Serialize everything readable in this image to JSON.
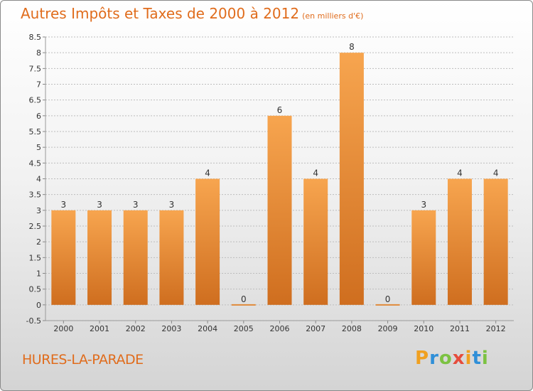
{
  "title": "Autres Impôts et Taxes de 2000 à 2012",
  "subtitle": "(en milliers d'€)",
  "place": "HURES-LA-PARADE",
  "logo": {
    "letters": [
      "P",
      "r",
      "o",
      "x",
      "i",
      "t",
      "i"
    ],
    "colors": [
      "#f0a020",
      "#2f8fd8",
      "#7cc242",
      "#e64c3c",
      "#f0a020",
      "#2f8fd8",
      "#7cc242"
    ]
  },
  "colors": {
    "accent": "#e06c1c",
    "bar_light": "#f7a54f",
    "bar_dark": "#cf6e1f",
    "grid": "#bdbdbd",
    "axis_text": "#333333"
  },
  "chart_data": {
    "type": "bar",
    "categories": [
      "2000",
      "2001",
      "2002",
      "2003",
      "2004",
      "2005",
      "2006",
      "2007",
      "2008",
      "2009",
      "2010",
      "2011",
      "2012"
    ],
    "values": [
      3,
      3,
      3,
      3,
      4,
      0,
      6,
      4,
      8,
      0,
      3,
      4,
      4
    ],
    "data_labels": [
      "3",
      "3",
      "3",
      "3",
      "4",
      "0",
      "6",
      "4",
      "8",
      "0",
      "3",
      "4",
      "4"
    ],
    "ylim": [
      -0.5,
      8.5
    ],
    "yticks": [
      "-0.5",
      "0",
      "0.5",
      "1",
      "1.5",
      "2",
      "2.5",
      "3",
      "3.5",
      "4",
      "4.5",
      "5",
      "5.5",
      "6",
      "6.5",
      "7",
      "7.5",
      "8",
      "8.5"
    ],
    "grid": true,
    "legend": "none"
  }
}
